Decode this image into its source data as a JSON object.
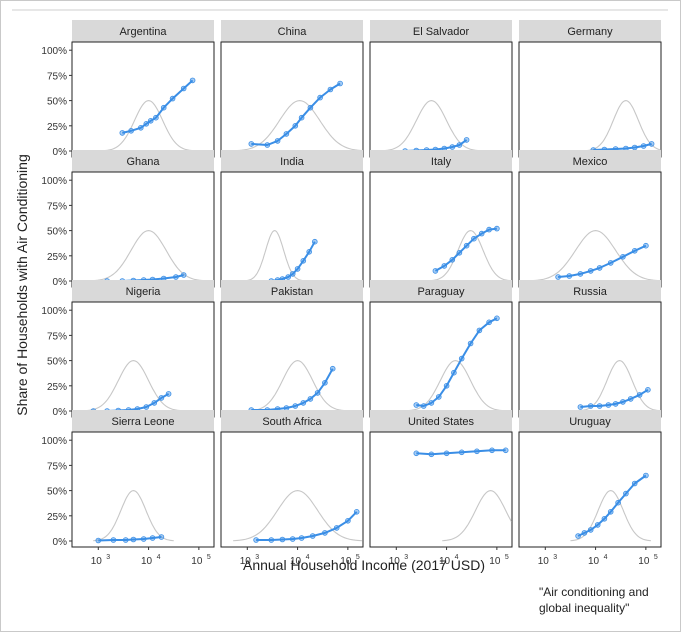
{
  "chart_data": {
    "type": "line",
    "layout": "facet-grid",
    "xlabel": "Annual Household Income (2017 USD)",
    "ylabel": "Share of Households with Air Conditioning",
    "x_scale": "log10",
    "xlim": [
      300,
      200000
    ],
    "ylim": [
      0,
      1
    ],
    "x_ticks": [
      1000,
      10000,
      100000
    ],
    "x_tick_labels": [
      "10",
      "10",
      "10"
    ],
    "x_tick_exponents": [
      "3",
      "4",
      "5"
    ],
    "y_ticks": [
      0,
      0.25,
      0.5,
      0.75,
      1.0
    ],
    "y_tick_labels": [
      "0%",
      "25%",
      "50%",
      "75%",
      "100%"
    ],
    "grid": false,
    "colors": {
      "series": "#3a8ee6",
      "density": "#c7c7c7",
      "strip": "#d9d9d9",
      "border": "#222222"
    },
    "caption": "\"Air conditioning and global inequality\"",
    "facets": [
      {
        "name": "Argentina",
        "density": {
          "peak_x": 10000,
          "sigma_log10": 0.28,
          "height": 0.5
        },
        "x": [
          3000,
          4500,
          7000,
          9000,
          11000,
          14000,
          20000,
          30000,
          50000,
          75000
        ],
        "y": [
          0.18,
          0.2,
          0.23,
          0.27,
          0.3,
          0.33,
          0.43,
          0.52,
          0.62,
          0.7
        ]
      },
      {
        "name": "China",
        "density": {
          "peak_x": 11000,
          "sigma_log10": 0.4,
          "height": 0.5
        },
        "x": [
          1200,
          2500,
          4000,
          6000,
          9000,
          12000,
          18000,
          28000,
          45000,
          70000
        ],
        "y": [
          0.07,
          0.06,
          0.1,
          0.17,
          0.25,
          0.33,
          0.43,
          0.53,
          0.61,
          0.67
        ]
      },
      {
        "name": "El Salvador",
        "density": {
          "peak_x": 5000,
          "sigma_log10": 0.3,
          "height": 0.5
        },
        "x": [
          1500,
          2500,
          4000,
          6000,
          9000,
          13000,
          18000,
          25000
        ],
        "y": [
          0.0,
          0.005,
          0.01,
          0.015,
          0.025,
          0.04,
          0.06,
          0.11
        ]
      },
      {
        "name": "Germany",
        "density": {
          "peak_x": 40000,
          "sigma_log10": 0.25,
          "height": 0.5
        },
        "x": [
          9000,
          15000,
          25000,
          40000,
          60000,
          90000,
          130000
        ],
        "y": [
          0.01,
          0.015,
          0.02,
          0.025,
          0.035,
          0.05,
          0.07
        ]
      },
      {
        "name": "Ghana",
        "density": {
          "peak_x": 10000,
          "sigma_log10": 0.35,
          "height": 0.5
        },
        "x": [
          1500,
          3000,
          5000,
          8000,
          12000,
          20000,
          35000,
          50000
        ],
        "y": [
          0.0,
          0.0,
          0.005,
          0.01,
          0.015,
          0.025,
          0.04,
          0.06
        ]
      },
      {
        "name": "India",
        "density": {
          "peak_x": 3500,
          "sigma_log10": 0.18,
          "height": 0.5
        },
        "x": [
          3000,
          4000,
          5000,
          6500,
          8000,
          10000,
          13000,
          17000,
          22000
        ],
        "y": [
          0.0,
          0.01,
          0.02,
          0.04,
          0.07,
          0.12,
          0.2,
          0.29,
          0.39
        ]
      },
      {
        "name": "Italy",
        "density": {
          "peak_x": 30000,
          "sigma_log10": 0.25,
          "height": 0.5
        },
        "x": [
          6000,
          9000,
          13000,
          18000,
          25000,
          35000,
          50000,
          70000,
          100000
        ],
        "y": [
          0.1,
          0.15,
          0.21,
          0.28,
          0.35,
          0.42,
          0.47,
          0.51,
          0.52
        ]
      },
      {
        "name": "Mexico",
        "density": {
          "peak_x": 10000,
          "sigma_log10": 0.4,
          "height": 0.5
        },
        "x": [
          1800,
          3000,
          5000,
          8000,
          12000,
          20000,
          35000,
          60000,
          100000
        ],
        "y": [
          0.04,
          0.05,
          0.07,
          0.1,
          0.13,
          0.18,
          0.24,
          0.3,
          0.35
        ]
      },
      {
        "name": "Nigeria",
        "density": {
          "peak_x": 5000,
          "sigma_log10": 0.3,
          "height": 0.5
        },
        "x": [
          800,
          1500,
          2500,
          4000,
          6000,
          9000,
          13000,
          18000,
          25000
        ],
        "y": [
          0.0,
          0.0,
          0.005,
          0.01,
          0.02,
          0.04,
          0.08,
          0.13,
          0.17
        ]
      },
      {
        "name": "Pakistan",
        "density": {
          "peak_x": 10000,
          "sigma_log10": 0.3,
          "height": 0.5
        },
        "x": [
          1200,
          2500,
          4000,
          6000,
          9000,
          13000,
          18000,
          25000,
          35000,
          50000
        ],
        "y": [
          0.01,
          0.01,
          0.02,
          0.03,
          0.05,
          0.08,
          0.12,
          0.18,
          0.28,
          0.42
        ]
      },
      {
        "name": "Paraguay",
        "density": {
          "peak_x": 15000,
          "sigma_log10": 0.3,
          "height": 0.5
        },
        "x": [
          2500,
          3500,
          5000,
          7000,
          10000,
          14000,
          20000,
          30000,
          45000,
          70000,
          100000
        ],
        "y": [
          0.06,
          0.05,
          0.08,
          0.14,
          0.25,
          0.38,
          0.52,
          0.67,
          0.8,
          0.88,
          0.92
        ]
      },
      {
        "name": "Russia",
        "density": {
          "peak_x": 30000,
          "sigma_log10": 0.25,
          "height": 0.5
        },
        "x": [
          5000,
          8000,
          12000,
          18000,
          25000,
          35000,
          50000,
          75000,
          110000
        ],
        "y": [
          0.04,
          0.05,
          0.05,
          0.06,
          0.07,
          0.09,
          0.12,
          0.16,
          0.21
        ]
      },
      {
        "name": "Sierra Leone",
        "density": {
          "peak_x": 5000,
          "sigma_log10": 0.25,
          "height": 0.5
        },
        "x": [
          1000,
          2000,
          3500,
          5000,
          8000,
          12000,
          18000
        ],
        "y": [
          0.005,
          0.01,
          0.01,
          0.015,
          0.02,
          0.03,
          0.04
        ]
      },
      {
        "name": "South Africa",
        "density": {
          "peak_x": 10000,
          "sigma_log10": 0.4,
          "height": 0.5
        },
        "x": [
          1500,
          3000,
          5000,
          8000,
          12000,
          20000,
          35000,
          60000,
          100000,
          150000
        ],
        "y": [
          0.01,
          0.01,
          0.015,
          0.02,
          0.03,
          0.05,
          0.08,
          0.13,
          0.2,
          0.29
        ]
      },
      {
        "name": "United States",
        "density": {
          "peak_x": 75000,
          "sigma_log10": 0.3,
          "height": 0.5
        },
        "x": [
          2500,
          5000,
          10000,
          20000,
          40000,
          80000,
          150000
        ],
        "y": [
          0.87,
          0.86,
          0.87,
          0.88,
          0.89,
          0.9,
          0.9
        ]
      },
      {
        "name": "Uruguay",
        "density": {
          "peak_x": 20000,
          "sigma_log10": 0.25,
          "height": 0.5
        },
        "x": [
          4500,
          6000,
          8000,
          11000,
          15000,
          20000,
          28000,
          40000,
          60000,
          100000
        ],
        "y": [
          0.05,
          0.08,
          0.11,
          0.16,
          0.22,
          0.29,
          0.38,
          0.47,
          0.57,
          0.65
        ]
      }
    ]
  }
}
